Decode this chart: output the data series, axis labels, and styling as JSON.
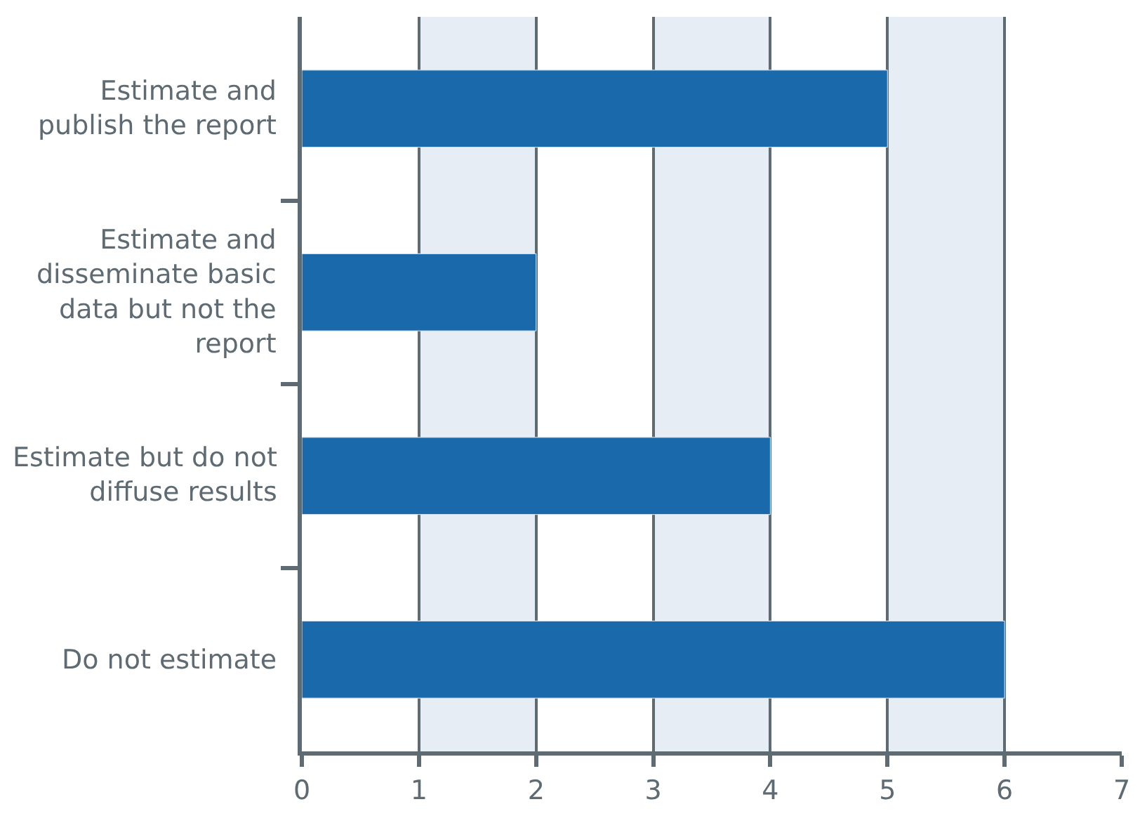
{
  "chart_data": {
    "type": "bar",
    "orientation": "horizontal",
    "categories": [
      "Estimate and publish the report",
      "Estimate and disseminate basic data but not the report",
      "Estimate but do not diffuse results",
      "Do not estimate"
    ],
    "values": [
      5,
      2,
      4,
      6
    ],
    "color": "#1a6aab",
    "xlim": [
      0,
      7
    ],
    "xticks": [
      0,
      1,
      2,
      3,
      4,
      5,
      6,
      7
    ],
    "grid": "x",
    "bands": [
      {
        "axis": "x",
        "from": 1,
        "to": 2,
        "color": "#e6edf5"
      },
      {
        "axis": "x",
        "from": 3,
        "to": 4,
        "color": "#e6edf5"
      },
      {
        "axis": "x",
        "from": 5,
        "to": 6,
        "color": "#e6edf5"
      }
    ]
  }
}
